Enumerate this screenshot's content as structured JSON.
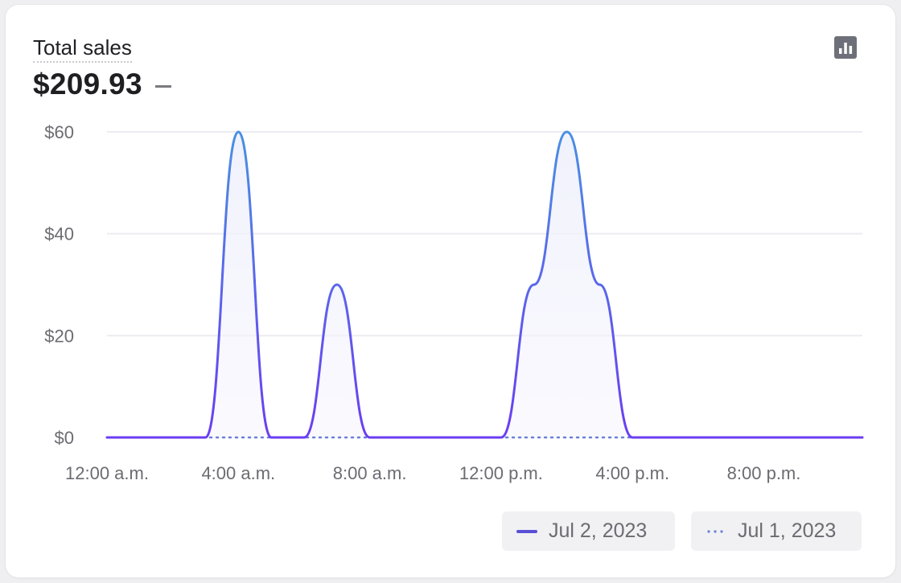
{
  "card": {
    "title": "Total sales",
    "total": "$209.93",
    "chart_toggle_icon": "bar-chart-icon"
  },
  "legend": {
    "current_label": "Jul 2, 2023",
    "comparison_label": "Jul 1, 2023"
  },
  "colors": {
    "line_top": "#4a90e2",
    "line_bottom": "#6a3df2",
    "comparison_line": "#6a7fd8",
    "grid": "#ececf0"
  },
  "chart_data": {
    "type": "line",
    "title": "Total sales",
    "xlabel": "",
    "ylabel": "",
    "ylim": [
      0,
      60
    ],
    "yticks": [
      0,
      20,
      40,
      60
    ],
    "ytick_labels": [
      "$0",
      "$20",
      "$40",
      "$60"
    ],
    "xlim": [
      0,
      23
    ],
    "xticks": [
      0,
      4,
      8,
      12,
      16,
      20
    ],
    "xtick_labels": [
      "12:00 a.m.",
      "4:00 a.m.",
      "8:00 a.m.",
      "12:00 p.m.",
      "4:00 p.m.",
      "8:00 p.m."
    ],
    "x": [
      0,
      1,
      2,
      3,
      4,
      5,
      6,
      7,
      8,
      9,
      10,
      11,
      12,
      13,
      14,
      15,
      16,
      17,
      18,
      19,
      20,
      21,
      22,
      23
    ],
    "series": [
      {
        "name": "Jul 2, 2023",
        "style": "solid",
        "values": [
          0,
          0,
          0,
          0,
          60,
          0,
          0,
          30,
          0,
          0,
          0,
          0,
          0,
          30,
          60,
          30,
          0,
          0,
          0,
          0,
          0,
          0,
          0,
          0
        ]
      },
      {
        "name": "Jul 1, 2023",
        "style": "dotted",
        "values": [
          0,
          0,
          0,
          0,
          0,
          0,
          0,
          0,
          0,
          0,
          0,
          0,
          0,
          0,
          0,
          0,
          0,
          0,
          0,
          0,
          0,
          0,
          0,
          0
        ]
      }
    ],
    "grid": true,
    "legend_position": "bottom-right"
  }
}
